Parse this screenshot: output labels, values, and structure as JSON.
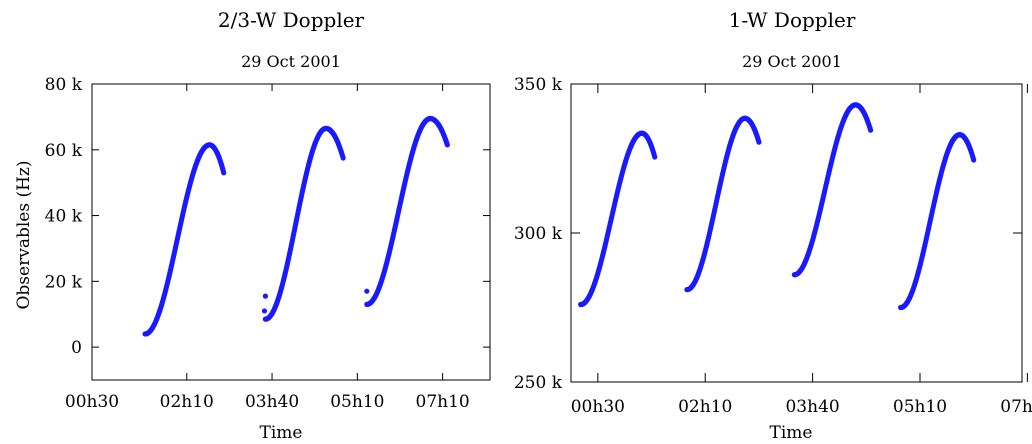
{
  "chart_data": [
    {
      "type": "scatter",
      "title": "2/3-W Doppler",
      "subtitle": "29 Oct 2001",
      "xlabel": "Time",
      "ylabel": "Observables (Hz)",
      "xlim": [
        0,
        420
      ],
      "ylim": [
        -10000,
        80000
      ],
      "xticks": [
        {
          "value": 0,
          "label": "00h30"
        },
        {
          "value": 100,
          "label": "02h10"
        },
        {
          "value": 190,
          "label": "03h40"
        },
        {
          "value": 280,
          "label": "05h10"
        },
        {
          "value": 370,
          "label": "07h10"
        }
      ],
      "yticks": [
        {
          "value": 0,
          "label": "0"
        },
        {
          "value": 20000,
          "label": "20 k"
        },
        {
          "value": 40000,
          "label": "40 k"
        },
        {
          "value": 60000,
          "label": "60 k"
        },
        {
          "value": 80000,
          "label": "80 k"
        }
      ],
      "marker_color": "#1a1aff",
      "passes": [
        {
          "t0": 56,
          "t1": 139,
          "y0": 4000,
          "peak_t": 124,
          "peak": 61500,
          "yend": 53000
        },
        {
          "t0": 183,
          "t1": 265,
          "y0": 8500,
          "peak_t": 247,
          "peak": 66500,
          "yend": 57500
        },
        {
          "t0": 290,
          "t1": 375,
          "y0": 13000,
          "peak_t": 357,
          "peak": 69500,
          "yend": 61500
        }
      ],
      "outliers": [
        {
          "x": 183,
          "y": 15500
        },
        {
          "x": 182,
          "y": 11000
        },
        {
          "x": 290,
          "y": 17000
        }
      ]
    },
    {
      "type": "scatter",
      "title": "1-W Doppler",
      "subtitle": "29 Oct 2001",
      "xlabel": "Time",
      "ylabel": "",
      "xlim": [
        0,
        420
      ],
      "ylim": [
        250000,
        350000
      ],
      "xticks": [
        {
          "value": 25,
          "label": "00h30"
        },
        {
          "value": 125,
          "label": "02h10"
        },
        {
          "value": 225,
          "label": "03h40"
        },
        {
          "value": 325,
          "label": "05h10"
        },
        {
          "value": 425,
          "label": "07h10"
        }
      ],
      "yticks": [
        {
          "value": 250000,
          "label": "250 k"
        },
        {
          "value": 300000,
          "label": "300 k"
        },
        {
          "value": 350000,
          "label": "350 k"
        }
      ],
      "marker_color": "#1a1aff",
      "passes": [
        {
          "t0": 9,
          "t1": 78,
          "y0": 276000,
          "peak_t": 66,
          "peak": 333500,
          "yend": 325500
        },
        {
          "t0": 108,
          "t1": 175,
          "y0": 281000,
          "peak_t": 162,
          "peak": 338500,
          "yend": 330500
        },
        {
          "t0": 208,
          "t1": 279,
          "y0": 286000,
          "peak_t": 265,
          "peak": 343000,
          "yend": 334500
        },
        {
          "t0": 307,
          "t1": 375,
          "y0": 275000,
          "peak_t": 362,
          "peak": 333000,
          "yend": 324500
        }
      ],
      "outliers": []
    }
  ]
}
